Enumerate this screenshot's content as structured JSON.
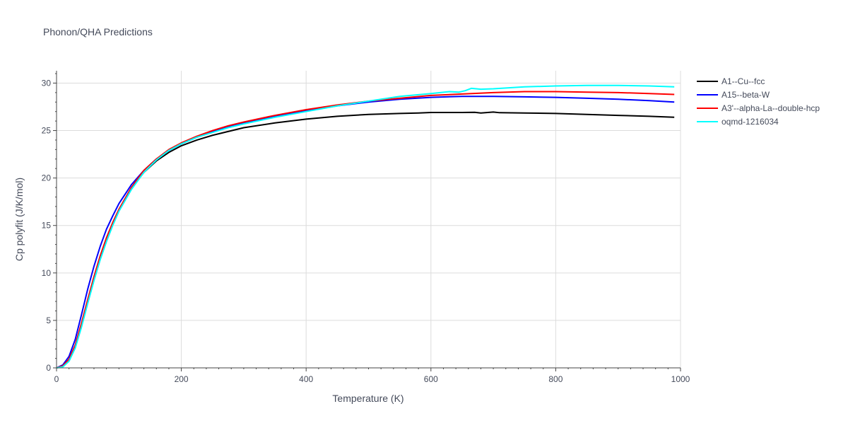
{
  "chart_data": {
    "type": "line",
    "title": "Phonon/QHA Predictions",
    "xlabel": "Temperature (K)",
    "ylabel": "Cp polyfit (J/K/mol)",
    "xlim": [
      0,
      1000
    ],
    "ylim": [
      0,
      31.3
    ],
    "xticks": [
      0,
      200,
      400,
      600,
      800,
      1000
    ],
    "yticks": [
      0,
      5,
      10,
      15,
      20,
      25,
      30
    ],
    "grid": true,
    "legend_position": "top-right",
    "series": [
      {
        "name": "A1--Cu--fcc",
        "color": "#000000",
        "points": [
          [
            0,
            0
          ],
          [
            10,
            0.2
          ],
          [
            20,
            0.8
          ],
          [
            30,
            2.3
          ],
          [
            40,
            4.5
          ],
          [
            50,
            7.0
          ],
          [
            60,
            9.4
          ],
          [
            70,
            11.6
          ],
          [
            80,
            13.5
          ],
          [
            90,
            15.2
          ],
          [
            100,
            16.6
          ],
          [
            120,
            18.9
          ],
          [
            140,
            20.6
          ],
          [
            160,
            21.8
          ],
          [
            180,
            22.7
          ],
          [
            200,
            23.4
          ],
          [
            225,
            24.0
          ],
          [
            250,
            24.5
          ],
          [
            275,
            24.9
          ],
          [
            300,
            25.3
          ],
          [
            350,
            25.8
          ],
          [
            400,
            26.2
          ],
          [
            450,
            26.5
          ],
          [
            500,
            26.7
          ],
          [
            550,
            26.8
          ],
          [
            580,
            26.85
          ],
          [
            600,
            26.9
          ],
          [
            650,
            26.9
          ],
          [
            670,
            26.92
          ],
          [
            680,
            26.85
          ],
          [
            700,
            26.95
          ],
          [
            710,
            26.88
          ],
          [
            750,
            26.85
          ],
          [
            800,
            26.8
          ],
          [
            850,
            26.7
          ],
          [
            900,
            26.6
          ],
          [
            950,
            26.5
          ],
          [
            990,
            26.4
          ]
        ]
      },
      {
        "name": "A15--beta-W",
        "color": "#0000ff",
        "points": [
          [
            0,
            0
          ],
          [
            10,
            0.3
          ],
          [
            20,
            1.2
          ],
          [
            30,
            3.0
          ],
          [
            40,
            5.6
          ],
          [
            50,
            8.3
          ],
          [
            60,
            10.7
          ],
          [
            70,
            12.8
          ],
          [
            80,
            14.6
          ],
          [
            90,
            16.0
          ],
          [
            100,
            17.3
          ],
          [
            120,
            19.3
          ],
          [
            140,
            20.8
          ],
          [
            160,
            22.0
          ],
          [
            180,
            22.9
          ],
          [
            200,
            23.6
          ],
          [
            225,
            24.3
          ],
          [
            250,
            24.9
          ],
          [
            275,
            25.4
          ],
          [
            300,
            25.8
          ],
          [
            350,
            26.5
          ],
          [
            400,
            27.1
          ],
          [
            450,
            27.6
          ],
          [
            500,
            28.0
          ],
          [
            550,
            28.3
          ],
          [
            600,
            28.5
          ],
          [
            650,
            28.6
          ],
          [
            700,
            28.6
          ],
          [
            750,
            28.55
          ],
          [
            800,
            28.5
          ],
          [
            850,
            28.4
          ],
          [
            900,
            28.3
          ],
          [
            950,
            28.15
          ],
          [
            990,
            28.0
          ]
        ]
      },
      {
        "name": "A3'--alpha-La--double-hcp",
        "color": "#ff0000",
        "points": [
          [
            0,
            0
          ],
          [
            10,
            0.2
          ],
          [
            20,
            0.9
          ],
          [
            30,
            2.4
          ],
          [
            40,
            4.7
          ],
          [
            50,
            7.2
          ],
          [
            60,
            9.6
          ],
          [
            70,
            11.8
          ],
          [
            80,
            13.7
          ],
          [
            90,
            15.3
          ],
          [
            100,
            16.7
          ],
          [
            120,
            19.0
          ],
          [
            140,
            20.8
          ],
          [
            160,
            22.0
          ],
          [
            180,
            23.0
          ],
          [
            200,
            23.7
          ],
          [
            225,
            24.4
          ],
          [
            250,
            25.0
          ],
          [
            275,
            25.5
          ],
          [
            300,
            25.9
          ],
          [
            350,
            26.6
          ],
          [
            400,
            27.2
          ],
          [
            450,
            27.7
          ],
          [
            500,
            28.1
          ],
          [
            550,
            28.4
          ],
          [
            600,
            28.7
          ],
          [
            650,
            28.85
          ],
          [
            700,
            29.0
          ],
          [
            750,
            29.1
          ],
          [
            800,
            29.1
          ],
          [
            850,
            29.05
          ],
          [
            900,
            29.0
          ],
          [
            950,
            28.9
          ],
          [
            990,
            28.8
          ]
        ]
      },
      {
        "name": "oqmd-1216034",
        "color": "#00ffff",
        "points": [
          [
            0,
            0
          ],
          [
            10,
            0.1
          ],
          [
            20,
            0.7
          ],
          [
            30,
            2.1
          ],
          [
            40,
            4.3
          ],
          [
            50,
            6.8
          ],
          [
            60,
            9.2
          ],
          [
            70,
            11.4
          ],
          [
            80,
            13.3
          ],
          [
            90,
            15.0
          ],
          [
            100,
            16.5
          ],
          [
            120,
            18.8
          ],
          [
            140,
            20.6
          ],
          [
            160,
            21.9
          ],
          [
            180,
            22.9
          ],
          [
            200,
            23.6
          ],
          [
            225,
            24.3
          ],
          [
            250,
            24.8
          ],
          [
            275,
            25.3
          ],
          [
            300,
            25.7
          ],
          [
            350,
            26.4
          ],
          [
            400,
            27.0
          ],
          [
            450,
            27.6
          ],
          [
            500,
            28.1
          ],
          [
            550,
            28.6
          ],
          [
            600,
            28.9
          ],
          [
            630,
            29.1
          ],
          [
            645,
            29.05
          ],
          [
            655,
            29.2
          ],
          [
            665,
            29.45
          ],
          [
            680,
            29.35
          ],
          [
            700,
            29.4
          ],
          [
            750,
            29.6
          ],
          [
            800,
            29.7
          ],
          [
            850,
            29.75
          ],
          [
            900,
            29.75
          ],
          [
            950,
            29.7
          ],
          [
            990,
            29.6
          ]
        ]
      }
    ]
  }
}
